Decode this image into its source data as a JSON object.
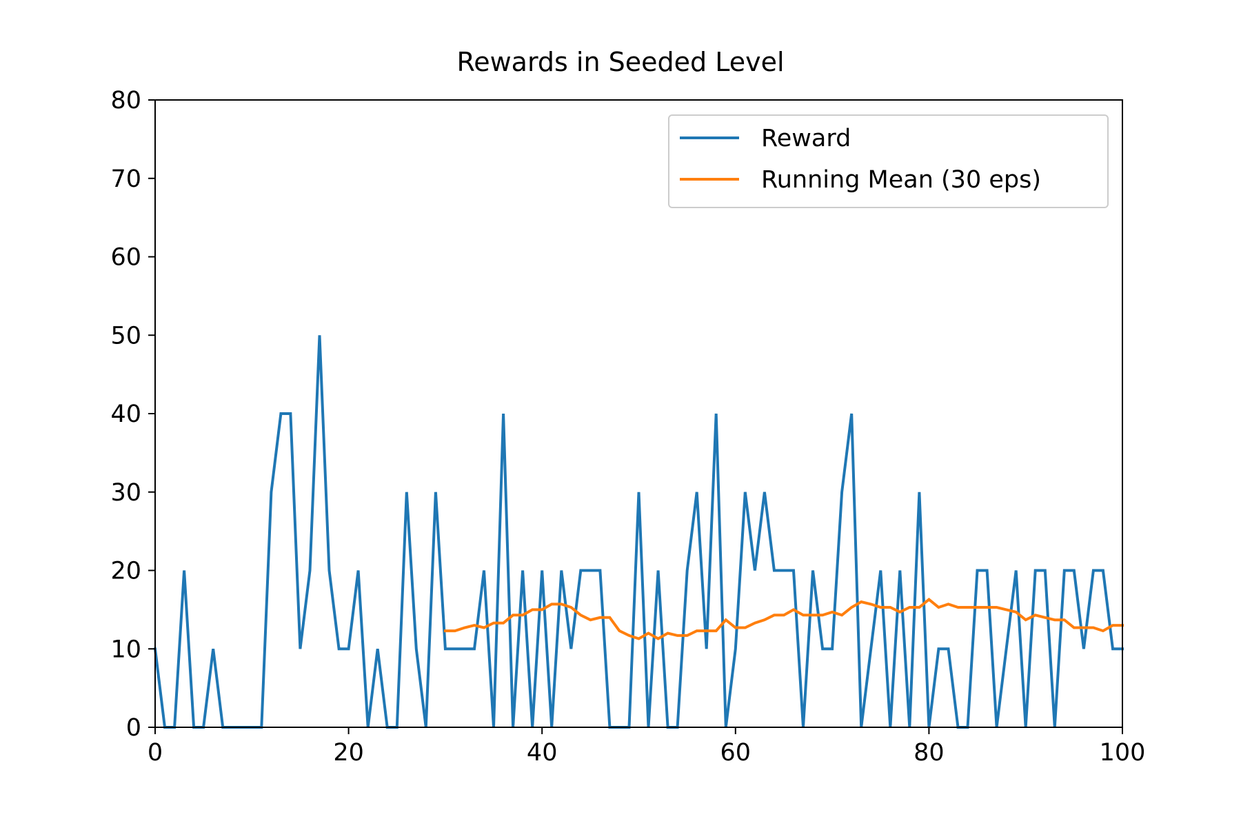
{
  "chart_data": {
    "type": "line",
    "title": "Rewards in Seeded Level",
    "xlabel": "",
    "ylabel": "",
    "xlim": [
      0,
      100
    ],
    "ylim": [
      0,
      80
    ],
    "x_ticks": [
      0,
      20,
      40,
      60,
      80,
      100
    ],
    "y_ticks": [
      0,
      10,
      20,
      30,
      40,
      50,
      60,
      70,
      80
    ],
    "grid": false,
    "legend_position": "top-right",
    "series": [
      {
        "name": "Reward",
        "color": "#1f77b4",
        "x_start": 0,
        "values": [
          10,
          0,
          0,
          20,
          0,
          0,
          10,
          0,
          0,
          0,
          0,
          0,
          30,
          40,
          40,
          10,
          20,
          50,
          20,
          10,
          10,
          20,
          0,
          10,
          0,
          0,
          30,
          10,
          0,
          30,
          10,
          10,
          10,
          10,
          20,
          0,
          40,
          0,
          20,
          0,
          20,
          0,
          20,
          10,
          20,
          20,
          20,
          0,
          0,
          0,
          30,
          0,
          20,
          0,
          0,
          20,
          30,
          10,
          40,
          0,
          10,
          30,
          20,
          30,
          20,
          20,
          20,
          0,
          20,
          10,
          10,
          30,
          40,
          0,
          10,
          20,
          0,
          20,
          0,
          30,
          0,
          10,
          10,
          0,
          0,
          20,
          20,
          0,
          10,
          20,
          0,
          20,
          20,
          0,
          20,
          20,
          10,
          20,
          20,
          10,
          10
        ]
      },
      {
        "name": "Running Mean (30 eps)",
        "color": "#ff7f0e",
        "x_start": 30,
        "values": [
          12.3,
          12.3,
          12.7,
          13.0,
          12.7,
          13.3,
          13.3,
          14.3,
          14.3,
          15.0,
          15.0,
          15.7,
          15.7,
          15.3,
          14.3,
          13.7,
          14.0,
          14.0,
          12.3,
          11.7,
          11.3,
          12.0,
          11.3,
          12.0,
          11.7,
          11.7,
          12.3,
          12.3,
          12.3,
          13.7,
          12.7,
          12.7,
          13.3,
          13.7,
          14.3,
          14.3,
          15.0,
          14.3,
          14.3,
          14.3,
          14.7,
          14.3,
          15.3,
          16.0,
          15.7,
          15.3,
          15.3,
          14.7,
          15.3,
          15.3,
          16.3,
          15.3,
          15.7,
          15.3,
          15.3,
          15.3,
          15.3,
          15.3,
          15.0,
          14.7,
          13.7,
          14.3,
          14.0,
          13.7,
          13.7,
          12.7,
          12.7,
          12.7,
          12.3,
          13.0,
          13.0
        ]
      }
    ]
  }
}
